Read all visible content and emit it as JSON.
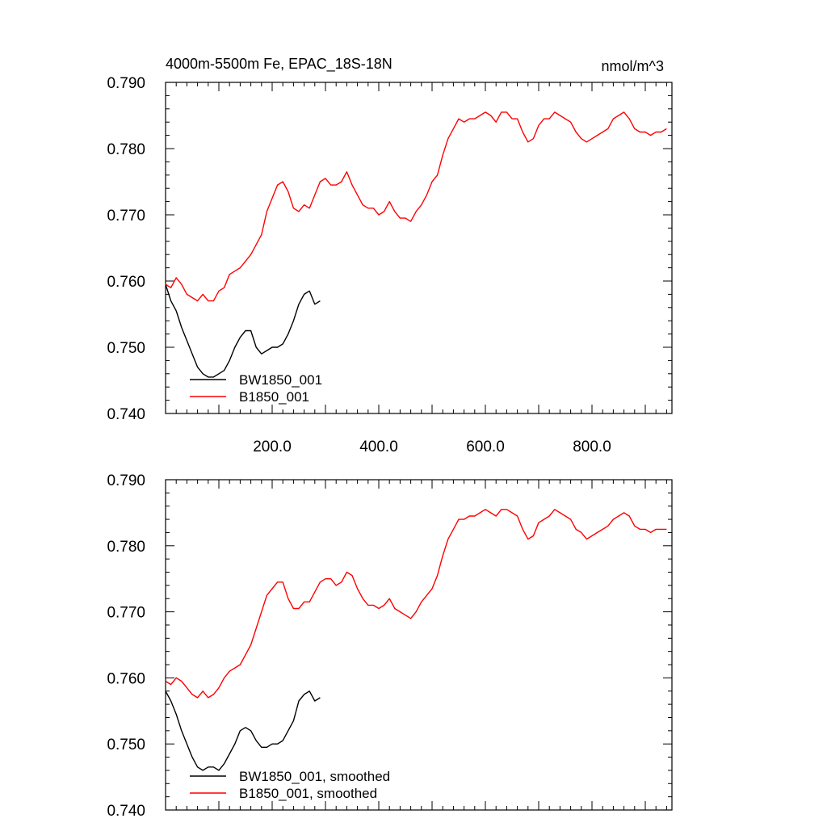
{
  "chart_data": [
    {
      "type": "line",
      "title": "4000m-5500m Fe, EPAC_18S-18N",
      "units": "nmol/m^3",
      "xlim": [
        0,
        950
      ],
      "ylim": [
        0.74,
        0.79
      ],
      "xticks": [
        200,
        400,
        600,
        800
      ],
      "xtick_labels": [
        "200.0",
        "400.0",
        "600.0",
        "800.0"
      ],
      "yticks": [
        0.74,
        0.75,
        0.76,
        0.77,
        0.78,
        0.79
      ],
      "ytick_labels": [
        "0.740",
        "0.750",
        "0.760",
        "0.770",
        "0.780",
        "0.790"
      ],
      "grid": false,
      "legend_position": "bottom-left",
      "series": [
        {
          "name": "BW1850_001",
          "color": "#000000",
          "x": [
            0,
            10,
            20,
            30,
            40,
            50,
            60,
            70,
            80,
            90,
            100,
            110,
            120,
            130,
            140,
            150,
            160,
            170,
            180,
            190,
            200,
            210,
            220,
            230,
            240,
            250,
            260,
            270,
            280,
            290
          ],
          "y": [
            0.7595,
            0.757,
            0.7555,
            0.753,
            0.751,
            0.749,
            0.747,
            0.746,
            0.7455,
            0.7455,
            0.746,
            0.7465,
            0.748,
            0.75,
            0.7515,
            0.7525,
            0.7525,
            0.75,
            0.749,
            0.7495,
            0.75,
            0.75,
            0.7505,
            0.752,
            0.754,
            0.7565,
            0.758,
            0.7585,
            0.7565,
            0.757
          ]
        },
        {
          "name": "B1850_001",
          "color": "#ff0000",
          "x": [
            0,
            10,
            20,
            30,
            40,
            50,
            60,
            70,
            80,
            90,
            100,
            110,
            120,
            130,
            140,
            150,
            160,
            170,
            180,
            190,
            200,
            210,
            220,
            230,
            240,
            250,
            260,
            270,
            280,
            290,
            300,
            310,
            320,
            330,
            340,
            350,
            360,
            370,
            380,
            390,
            400,
            410,
            420,
            430,
            440,
            450,
            460,
            470,
            480,
            490,
            500,
            510,
            520,
            530,
            540,
            550,
            560,
            570,
            580,
            590,
            600,
            610,
            620,
            630,
            640,
            650,
            660,
            670,
            680,
            690,
            700,
            710,
            720,
            730,
            740,
            750,
            760,
            770,
            780,
            790,
            800,
            810,
            820,
            830,
            840,
            850,
            860,
            870,
            880,
            890,
            900,
            910,
            920,
            930,
            940
          ],
          "y": [
            0.7595,
            0.759,
            0.7605,
            0.7595,
            0.758,
            0.7575,
            0.757,
            0.758,
            0.757,
            0.757,
            0.7585,
            0.759,
            0.761,
            0.7615,
            0.762,
            0.763,
            0.764,
            0.7655,
            0.767,
            0.7705,
            0.7725,
            0.7745,
            0.775,
            0.7735,
            0.771,
            0.7705,
            0.7715,
            0.771,
            0.773,
            0.775,
            0.7755,
            0.7745,
            0.7745,
            0.775,
            0.7765,
            0.7745,
            0.773,
            0.7715,
            0.771,
            0.771,
            0.77,
            0.7705,
            0.772,
            0.7705,
            0.7695,
            0.7695,
            0.769,
            0.7705,
            0.7715,
            0.773,
            0.775,
            0.776,
            0.779,
            0.7815,
            0.783,
            0.7845,
            0.784,
            0.7845,
            0.7845,
            0.785,
            0.7855,
            0.785,
            0.784,
            0.7855,
            0.7855,
            0.7845,
            0.7845,
            0.7825,
            0.781,
            0.7815,
            0.7835,
            0.7845,
            0.7845,
            0.7855,
            0.785,
            0.7845,
            0.784,
            0.7825,
            0.7815,
            0.781,
            0.7815,
            0.782,
            0.7825,
            0.783,
            0.7845,
            0.785,
            0.7855,
            0.7845,
            0.783,
            0.7825,
            0.7825,
            0.782,
            0.7825,
            0.7825,
            0.783
          ]
        }
      ]
    },
    {
      "type": "line",
      "title": "",
      "xlim": [
        0,
        950
      ],
      "ylim": [
        0.74,
        0.79
      ],
      "yticks": [
        0.74,
        0.75,
        0.76,
        0.77,
        0.78,
        0.79
      ],
      "ytick_labels": [
        "0.740",
        "0.750",
        "0.760",
        "0.770",
        "0.780",
        "0.790"
      ],
      "grid": false,
      "legend_position": "bottom-left",
      "series": [
        {
          "name": "BW1850_001, smoothed",
          "color": "#000000",
          "x": [
            0,
            10,
            20,
            30,
            40,
            50,
            60,
            70,
            80,
            90,
            100,
            110,
            120,
            130,
            140,
            150,
            160,
            170,
            180,
            190,
            200,
            210,
            220,
            230,
            240,
            250,
            260,
            270,
            280,
            290
          ],
          "y": [
            0.758,
            0.7565,
            0.7545,
            0.752,
            0.75,
            0.748,
            0.7465,
            0.746,
            0.7465,
            0.7465,
            0.746,
            0.747,
            0.7485,
            0.75,
            0.752,
            0.7525,
            0.752,
            0.7505,
            0.7495,
            0.7495,
            0.75,
            0.75,
            0.7505,
            0.752,
            0.7535,
            0.7565,
            0.7575,
            0.758,
            0.7565,
            0.757
          ]
        },
        {
          "name": "B1850_001, smoothed",
          "color": "#ff0000",
          "x": [
            0,
            10,
            20,
            30,
            40,
            50,
            60,
            70,
            80,
            90,
            100,
            110,
            120,
            130,
            140,
            150,
            160,
            170,
            180,
            190,
            200,
            210,
            220,
            230,
            240,
            250,
            260,
            270,
            280,
            290,
            300,
            310,
            320,
            330,
            340,
            350,
            360,
            370,
            380,
            390,
            400,
            410,
            420,
            430,
            440,
            450,
            460,
            470,
            480,
            490,
            500,
            510,
            520,
            530,
            540,
            550,
            560,
            570,
            580,
            590,
            600,
            610,
            620,
            630,
            640,
            650,
            660,
            670,
            680,
            690,
            700,
            710,
            720,
            730,
            740,
            750,
            760,
            770,
            780,
            790,
            800,
            810,
            820,
            830,
            840,
            850,
            860,
            870,
            880,
            890,
            900,
            910,
            920,
            930,
            940
          ],
          "y": [
            0.7595,
            0.759,
            0.76,
            0.7595,
            0.7585,
            0.7575,
            0.757,
            0.758,
            0.757,
            0.7575,
            0.7585,
            0.76,
            0.761,
            0.7615,
            0.762,
            0.7635,
            0.765,
            0.7675,
            0.77,
            0.7725,
            0.7735,
            0.7745,
            0.7745,
            0.772,
            0.7705,
            0.7705,
            0.7715,
            0.7715,
            0.773,
            0.7745,
            0.775,
            0.775,
            0.774,
            0.7745,
            0.776,
            0.7755,
            0.7735,
            0.772,
            0.771,
            0.771,
            0.7705,
            0.771,
            0.772,
            0.7705,
            0.77,
            0.7695,
            0.769,
            0.77,
            0.7715,
            0.7725,
            0.7735,
            0.7755,
            0.7785,
            0.781,
            0.7825,
            0.784,
            0.784,
            0.7845,
            0.7845,
            0.785,
            0.7855,
            0.785,
            0.7845,
            0.7855,
            0.7855,
            0.785,
            0.7845,
            0.7825,
            0.781,
            0.7815,
            0.7835,
            0.784,
            0.7845,
            0.7855,
            0.785,
            0.7845,
            0.784,
            0.7825,
            0.782,
            0.781,
            0.7815,
            0.782,
            0.7825,
            0.783,
            0.784,
            0.7845,
            0.785,
            0.7845,
            0.783,
            0.7825,
            0.7825,
            0.782,
            0.7825,
            0.7825,
            0.7825
          ]
        }
      ]
    }
  ]
}
